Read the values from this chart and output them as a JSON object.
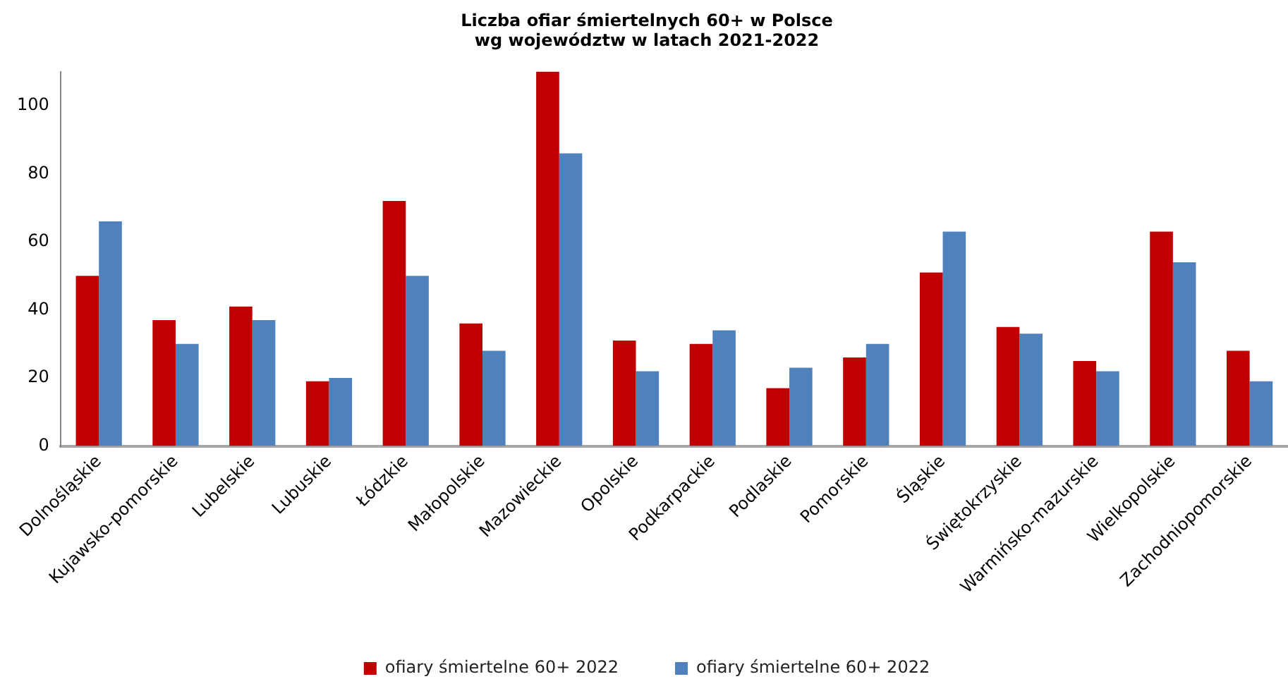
{
  "chart_data": {
    "type": "bar",
    "title": "Liczba ofiar śmiertelnych 60+ w Polsce\nwg województw w latach 2021-2022",
    "categories": [
      "Dolnośląskie",
      "Kujawsko-pomorskie",
      "Lubelskie",
      "Lubuskie",
      "Łódzkie",
      "Małopolskie",
      "Mazowieckie",
      "Opolskie",
      "Podkarpackie",
      "Podlaskie",
      "Pomorskie",
      "Śląskie",
      "Świętokrzyskie",
      "Warmińsko-mazurskie",
      "Wielkopolskie",
      "Zachodniopomorskie"
    ],
    "series": [
      {
        "name": "ofiary śmiertelne 60+ 2022",
        "color": "#c00000",
        "values": [
          50,
          37,
          41,
          19,
          72,
          36,
          110,
          31,
          30,
          17,
          26,
          51,
          35,
          25,
          63,
          28
        ]
      },
      {
        "name": "ofiary śmiertelne 60+ 2022",
        "color": "#4f81bd",
        "values": [
          66,
          30,
          37,
          20,
          50,
          28,
          86,
          22,
          34,
          23,
          30,
          63,
          33,
          22,
          54,
          19
        ]
      }
    ],
    "ylim": [
      0,
      110
    ],
    "yticks": [
      0,
      20,
      40,
      60,
      80,
      100
    ],
    "legend": "bottom"
  }
}
